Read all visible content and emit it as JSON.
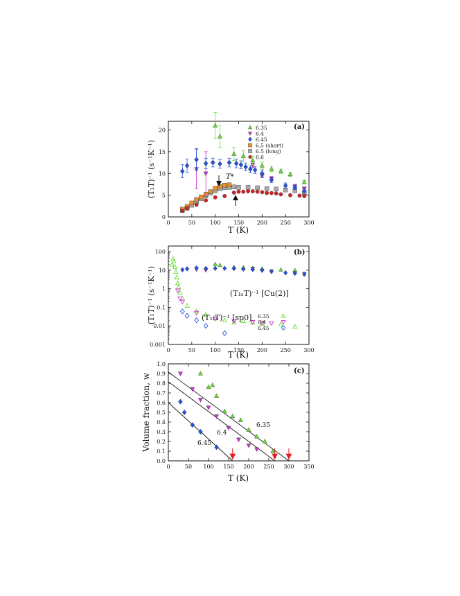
{
  "chart_data": [
    {
      "panel": "(a)",
      "type": "scatter",
      "xlabel": "T (K)",
      "ylabel": "(T₁T)⁻¹ (s⁻¹K⁻¹)",
      "xlim": [
        0,
        300
      ],
      "ylim": [
        0,
        22
      ],
      "x_ticks": [
        0,
        50,
        100,
        150,
        200,
        250,
        300
      ],
      "y_ticks": [
        0,
        5,
        10,
        15,
        20
      ],
      "legend_position": "top-right",
      "annotation": "T*",
      "series": [
        {
          "name": "6.35",
          "marker": "triangle-up",
          "color": "#66dd33",
          "filled": true,
          "x": [
            100,
            110,
            140,
            160,
            180,
            200,
            220,
            240,
            260,
            290
          ],
          "y": [
            21.0,
            18.5,
            14.5,
            14.0,
            13.0,
            11.8,
            11.0,
            10.5,
            9.8,
            8.0
          ],
          "err": [
            3.0,
            2.5,
            1.5,
            1.2,
            1.0,
            0.8,
            0.6,
            0.5,
            0.5,
            0.4
          ]
        },
        {
          "name": "6.4",
          "marker": "triangle-down",
          "color": "#cc33cc",
          "filled": true,
          "x": [
            60,
            80,
            180,
            200,
            220,
            270,
            290
          ],
          "y": [
            11.0,
            10.0,
            12.0,
            9.5,
            8.8,
            7.0,
            6.5
          ],
          "err": [
            4.5,
            5.0,
            0.6,
            0.5,
            0.5,
            0.5,
            0.4
          ]
        },
        {
          "name": "6.45",
          "marker": "diamond",
          "color": "#2255dd",
          "filled": true,
          "x": [
            30,
            40,
            60,
            80,
            95,
            110,
            130,
            145,
            155,
            165,
            175,
            185,
            200,
            220,
            250,
            270,
            290
          ],
          "y": [
            10.5,
            11.8,
            13.2,
            12.3,
            12.5,
            12.2,
            12.5,
            12.3,
            12.0,
            11.5,
            11.0,
            10.8,
            10.0,
            8.5,
            7.2,
            6.8,
            6.0
          ],
          "err": [
            1.5,
            1.5,
            2.5,
            1.2,
            1.0,
            1.0,
            1.0,
            1.0,
            0.9,
            0.9,
            0.8,
            0.8,
            0.8,
            0.6,
            0.6,
            0.5,
            0.5
          ]
        },
        {
          "name": "6.5 (short)",
          "marker": "square",
          "color": "#e8902a",
          "filled": true,
          "x": [
            30,
            40,
            50,
            60,
            70,
            80,
            90,
            100,
            110,
            120,
            130
          ],
          "y": [
            1.8,
            2.4,
            3.2,
            4.0,
            4.6,
            5.2,
            5.8,
            6.6,
            7.0,
            7.3,
            7.4
          ],
          "err": []
        },
        {
          "name": "6.5 (long)",
          "marker": "square",
          "color": "#aaaaaa",
          "filled": true,
          "x": [
            30,
            40,
            50,
            60,
            70,
            80,
            90,
            100,
            110,
            120,
            130,
            140,
            150,
            170,
            190,
            210,
            230,
            250,
            270,
            290
          ],
          "y": [
            1.5,
            2.0,
            2.7,
            3.5,
            4.2,
            4.8,
            5.5,
            6.0,
            6.5,
            6.7,
            6.8,
            6.9,
            6.8,
            6.8,
            6.7,
            6.5,
            6.4,
            6.2,
            6.0,
            5.6
          ],
          "err": []
        },
        {
          "name": "6.6",
          "marker": "circle",
          "color": "#cc2222",
          "filled": true,
          "x": [
            30,
            40,
            60,
            80,
            100,
            120,
            140,
            150,
            160,
            170,
            180,
            190,
            200,
            210,
            220,
            230,
            240,
            260,
            280,
            290
          ],
          "y": [
            1.4,
            2.0,
            2.8,
            3.8,
            4.5,
            4.8,
            5.6,
            5.8,
            5.8,
            5.9,
            5.9,
            5.8,
            5.7,
            5.5,
            5.5,
            5.4,
            5.2,
            5.0,
            4.9,
            4.8
          ],
          "err": []
        }
      ]
    },
    {
      "panel": "(b)",
      "type": "scatter",
      "xlabel": "T (K)",
      "ylabel": "(T₁T)⁻¹ (s⁻¹K⁻¹)",
      "y_scale": "log",
      "xlim": [
        0,
        300
      ],
      "ylim": [
        0.001,
        200
      ],
      "x_ticks": [
        0,
        50,
        100,
        150,
        200,
        250,
        300
      ],
      "y_tick_labels": [
        "0.001",
        "0.01",
        "0.1",
        "1",
        "10",
        "100"
      ],
      "legend_position": "right",
      "annotations": [
        "(T₁ₛT)⁻¹ [Cu(2)]",
        "(T₁ₜT)⁻¹ [sp0]"
      ],
      "series": [
        {
          "name": "6.35",
          "marker": "triangle-up",
          "color": "#66dd33",
          "filled": false,
          "x": [
            8,
            10,
            12,
            14,
            16,
            18,
            20,
            22,
            25,
            30,
            40,
            60,
            80,
            100,
            120,
            140,
            160,
            180,
            200,
            240,
            270
          ],
          "y": [
            20,
            40,
            30,
            15,
            8,
            4,
            2,
            1.2,
            0.6,
            0.3,
            0.12,
            0.06,
            0.04,
            0.025,
            0.02,
            0.015,
            0.018,
            0.015,
            0.013,
            0.012,
            0.009
          ]
        },
        {
          "name": "6.4",
          "marker": "triangle-down",
          "color": "#cc33cc",
          "filled": false,
          "x": [
            20,
            25,
            30,
            60,
            100,
            140,
            180,
            200,
            220
          ],
          "y": [
            0.8,
            0.3,
            0.2,
            0.05,
            0.025,
            0.018,
            0.016,
            0.015,
            0.014
          ]
        },
        {
          "name": "6.45",
          "marker": "diamond",
          "color": "#2255dd",
          "filled": false,
          "x": [
            30,
            40,
            60,
            80,
            120
          ],
          "y": [
            0.06,
            0.035,
            0.02,
            0.01,
            0.004
          ]
        },
        {
          "name": "6.35 [Cu(2)]",
          "marker": "triangle-up",
          "color": "#66dd33",
          "filled": true,
          "x": [
            100,
            110,
            140,
            160,
            180,
            200,
            240,
            270
          ],
          "y": [
            21,
            18.5,
            14.5,
            14,
            13,
            11.8,
            10.5,
            9.8
          ]
        },
        {
          "name": "6.4 [Cu(2)]",
          "marker": "triangle-down",
          "color": "#cc33cc",
          "filled": true,
          "x": [
            60,
            80,
            180,
            200,
            220,
            270,
            290
          ],
          "y": [
            11,
            10,
            12,
            9.5,
            8.8,
            7,
            6.5
          ]
        },
        {
          "name": "6.45 [Cu(2)]",
          "marker": "diamond",
          "color": "#2255dd",
          "filled": true,
          "x": [
            30,
            40,
            60,
            80,
            100,
            120,
            140,
            160,
            180,
            200,
            220,
            250,
            270,
            290
          ],
          "y": [
            10.5,
            11.8,
            13.2,
            12.3,
            12.5,
            12.5,
            12.3,
            11.5,
            10.8,
            10,
            8.5,
            7.2,
            6.8,
            6
          ]
        }
      ]
    },
    {
      "panel": "(c)",
      "type": "scatter",
      "xlabel": "T (K)",
      "ylabel": "Volume fraction, w",
      "xlim": [
        0,
        350
      ],
      "ylim": [
        0,
        1.0
      ],
      "x_ticks": [
        0,
        50,
        100,
        150,
        200,
        250,
        300,
        350
      ],
      "y_ticks": [
        0,
        0.1,
        0.2,
        0.3,
        0.4,
        0.5,
        0.6,
        0.7,
        0.8,
        0.9,
        1.0
      ],
      "series": [
        {
          "name": "6.35",
          "marker": "triangle-up",
          "color": "#66dd33",
          "filled": true,
          "x": [
            80,
            100,
            110,
            120,
            140,
            160,
            180,
            200,
            220,
            240,
            260
          ],
          "y": [
            0.9,
            0.76,
            0.78,
            0.67,
            0.51,
            0.46,
            0.42,
            0.32,
            0.25,
            0.2,
            0.1
          ]
        },
        {
          "name": "6.4",
          "marker": "triangle-down",
          "color": "#cc33cc",
          "filled": true,
          "x": [
            30,
            60,
            80,
            100,
            120,
            150,
            175,
            200,
            220
          ],
          "y": [
            0.9,
            0.74,
            0.63,
            0.55,
            0.46,
            0.34,
            0.22,
            0.16,
            0.12
          ]
        },
        {
          "name": "6.45",
          "marker": "diamond",
          "color": "#2255dd",
          "filled": true,
          "x": [
            30,
            40,
            60,
            80,
            120
          ],
          "y": [
            0.61,
            0.5,
            0.37,
            0.3,
            0.14
          ]
        }
      ],
      "fit_lines": [
        {
          "label": "6.35",
          "x0": 0,
          "y0": 0.915,
          "x1": 300,
          "y1": 0.0
        },
        {
          "label": "6.4",
          "x0": 0,
          "y0": 0.815,
          "x1": 265,
          "y1": 0.0
        },
        {
          "label": "6.45",
          "x0": 0,
          "y0": 0.6,
          "x1": 160,
          "y1": 0.0
        }
      ],
      "arrows_at_x": [
        160,
        265,
        300
      ]
    }
  ]
}
